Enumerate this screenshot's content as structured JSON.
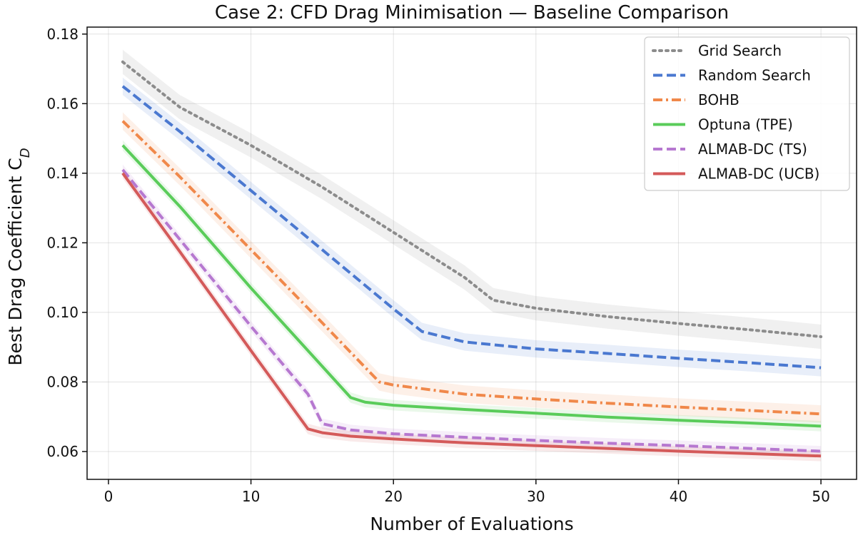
{
  "chart_data": {
    "type": "line",
    "title": "Case 2: CFD Drag Minimisation — Baseline Comparison",
    "xlabel": "Number of Evaluations",
    "ylabel": "Best Drag Coefficient C_D",
    "xlim": [
      -1.5,
      52.5
    ],
    "ylim": [
      0.052,
      0.182
    ],
    "xticks": [
      0,
      10,
      20,
      30,
      40,
      50
    ],
    "xtick_labels": [
      "0",
      "10",
      "20",
      "30",
      "40",
      "50"
    ],
    "yticks": [
      0.06,
      0.08,
      0.1,
      0.12,
      0.14,
      0.16,
      0.18
    ],
    "ytick_labels": [
      "0.06",
      "0.08",
      "0.10",
      "0.12",
      "0.14",
      "0.16",
      "0.18"
    ],
    "grid": true,
    "legend_position": "top-right",
    "series": [
      {
        "name": "Grid Search",
        "color": "#8c8c8c",
        "linestyle": "dotted",
        "band": 0.0035,
        "x": [
          1,
          5,
          10,
          15,
          20,
          25,
          27,
          30,
          35,
          40,
          45,
          50
        ],
        "y": [
          0.172,
          0.159,
          0.148,
          0.136,
          0.123,
          0.11,
          0.1035,
          0.1012,
          0.0988,
          0.0968,
          0.095,
          0.093
        ]
      },
      {
        "name": "Random Search",
        "color": "#4a78d0",
        "linestyle": "dashed",
        "band": 0.0025,
        "x": [
          1,
          5,
          10,
          15,
          20,
          22,
          25,
          30,
          35,
          40,
          45,
          50
        ],
        "y": [
          0.165,
          0.152,
          0.135,
          0.118,
          0.101,
          0.0945,
          0.0915,
          0.0895,
          0.0882,
          0.0868,
          0.0855,
          0.0841
        ]
      },
      {
        "name": "BOHB",
        "color": "#f0884a",
        "linestyle": "dashdot",
        "band": 0.0025,
        "x": [
          1,
          5,
          10,
          15,
          19,
          20,
          25,
          30,
          35,
          40,
          45,
          50
        ],
        "y": [
          0.155,
          0.139,
          0.118,
          0.097,
          0.08,
          0.0791,
          0.0765,
          0.0751,
          0.0739,
          0.0728,
          0.0718,
          0.0708
        ]
      },
      {
        "name": "Optuna (TPE)",
        "color": "#5acc5a",
        "linestyle": "solid",
        "band": 0.0015,
        "x": [
          1,
          5,
          10,
          15,
          17,
          18,
          20,
          25,
          30,
          35,
          40,
          45,
          50
        ],
        "y": [
          0.148,
          0.1305,
          0.107,
          0.0845,
          0.0755,
          0.0742,
          0.0733,
          0.0721,
          0.071,
          0.0699,
          0.069,
          0.0682,
          0.0673
        ]
      },
      {
        "name": "ALMAB-DC (TS)",
        "color": "#b678d0",
        "linestyle": "dashed",
        "band": 0.0015,
        "x": [
          1,
          5,
          10,
          14,
          15,
          17,
          20,
          25,
          30,
          35,
          40,
          45,
          50
        ],
        "y": [
          0.141,
          0.121,
          0.096,
          0.0765,
          0.068,
          0.0662,
          0.0651,
          0.0641,
          0.0632,
          0.0624,
          0.0617,
          0.0609,
          0.0601
        ]
      },
      {
        "name": "ALMAB-DC (UCB)",
        "color": "#d45a5a",
        "linestyle": "solid",
        "band": 0.0015,
        "x": [
          1,
          5,
          10,
          14,
          15,
          17,
          20,
          25,
          30,
          35,
          40,
          45,
          50
        ],
        "y": [
          0.14,
          0.1175,
          0.089,
          0.0665,
          0.0654,
          0.0644,
          0.0636,
          0.0625,
          0.0617,
          0.0609,
          0.0601,
          0.0594,
          0.0587
        ]
      }
    ]
  }
}
